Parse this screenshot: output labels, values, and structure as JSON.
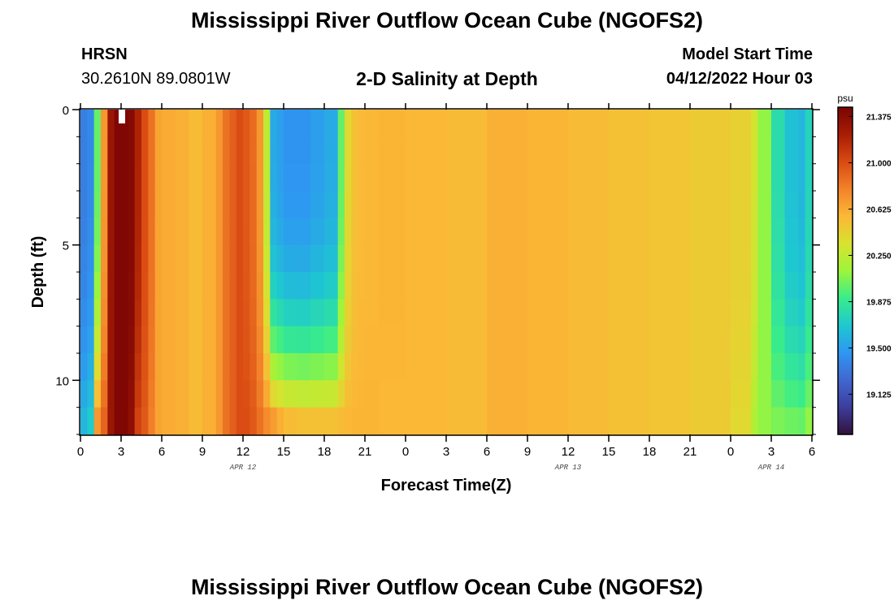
{
  "header": {
    "title": "Mississippi River Outflow Ocean Cube (NGOFS2)",
    "station_code": "HRSN",
    "station_coords": "30.2610N  89.0801W",
    "plot_title": "2-D Salinity at Depth",
    "model_start_label": "Model Start Time",
    "model_start_value": "04/12/2022 Hour 03"
  },
  "footer": {
    "title": "Mississippi River Outflow Ocean Cube (NGOFS2)"
  },
  "chart_data": {
    "type": "heatmap",
    "title": "2-D Salinity at Depth",
    "xlabel": "Forecast Time(Z)",
    "ylabel": "Depth (ft)",
    "x_ticks": [
      "0",
      "3",
      "6",
      "9",
      "12",
      "15",
      "18",
      "21",
      "0",
      "3",
      "6",
      "9",
      "12",
      "15",
      "18",
      "21",
      "0",
      "3",
      "6"
    ],
    "x_range_hours": [
      0,
      54
    ],
    "date_labels": [
      {
        "hour": 12,
        "label": "APR 12"
      },
      {
        "hour": 36,
        "label": "APR 13"
      },
      {
        "hour": 51,
        "label": "APR 14"
      }
    ],
    "y_ticks": [
      "0",
      "5",
      "10"
    ],
    "y_range_ft": [
      0,
      12
    ],
    "y_inverted": true,
    "colorbar": {
      "unit": "psu",
      "min": 18.8,
      "max": 21.45,
      "ticks": [
        "21.375",
        "21.000",
        "20.625",
        "20.250",
        "19.875",
        "19.500",
        "19.125"
      ],
      "colors": [
        "#30123b",
        "#3d3d9d",
        "#4167d0",
        "#2e97f2",
        "#1ec8d0",
        "#39ec8b",
        "#9df53b",
        "#d9e22f",
        "#fbb836",
        "#f3822a",
        "#d94a12",
        "#a81d05",
        "#7a0403"
      ]
    },
    "time_series_hour": [
      0,
      0.5,
      1,
      1.5,
      2,
      2.5,
      3,
      3.5,
      4,
      4.5,
      5,
      5.5,
      6,
      7,
      8,
      9,
      10,
      10.5,
      11,
      11.5,
      12,
      12.5,
      13,
      13.5,
      14,
      14.5,
      15,
      16,
      17,
      18,
      19,
      19.5,
      20,
      20.5,
      21,
      22,
      24,
      27,
      30,
      33,
      36,
      39,
      42,
      45,
      48,
      49.5,
      50,
      51,
      52,
      53,
      53.5,
      54
    ],
    "surface_salinity_psu": [
      19.35,
      19.4,
      20.0,
      20.7,
      21.3,
      21.42,
      21.42,
      21.4,
      21.2,
      21.0,
      20.85,
      20.65,
      20.62,
      20.6,
      20.55,
      20.6,
      20.7,
      20.85,
      20.92,
      21.0,
      20.95,
      20.88,
      20.7,
      20.25,
      19.55,
      19.5,
      19.45,
      19.45,
      19.5,
      19.55,
      20.0,
      20.4,
      20.52,
      20.56,
      20.57,
      20.58,
      20.57,
      20.55,
      20.6,
      20.58,
      20.55,
      20.52,
      20.5,
      20.47,
      20.44,
      20.32,
      20.1,
      19.8,
      19.65,
      19.6,
      19.75,
      20.1
    ],
    "bottom_salinity_psu": [
      19.6,
      19.7,
      20.7,
      20.9,
      21.3,
      21.42,
      21.42,
      21.35,
      21.05,
      20.95,
      20.8,
      20.65,
      20.62,
      20.6,
      20.55,
      20.6,
      20.7,
      20.85,
      20.92,
      21.0,
      21.0,
      20.95,
      20.85,
      20.75,
      20.68,
      20.6,
      20.55,
      20.52,
      20.52,
      20.52,
      20.55,
      20.57,
      20.58,
      20.58,
      20.58,
      20.57,
      20.57,
      20.55,
      20.6,
      20.58,
      20.55,
      20.52,
      20.5,
      20.47,
      20.4,
      20.2,
      20.1,
      20.05,
      20.02,
      20.0,
      20.1,
      20.2
    ]
  }
}
